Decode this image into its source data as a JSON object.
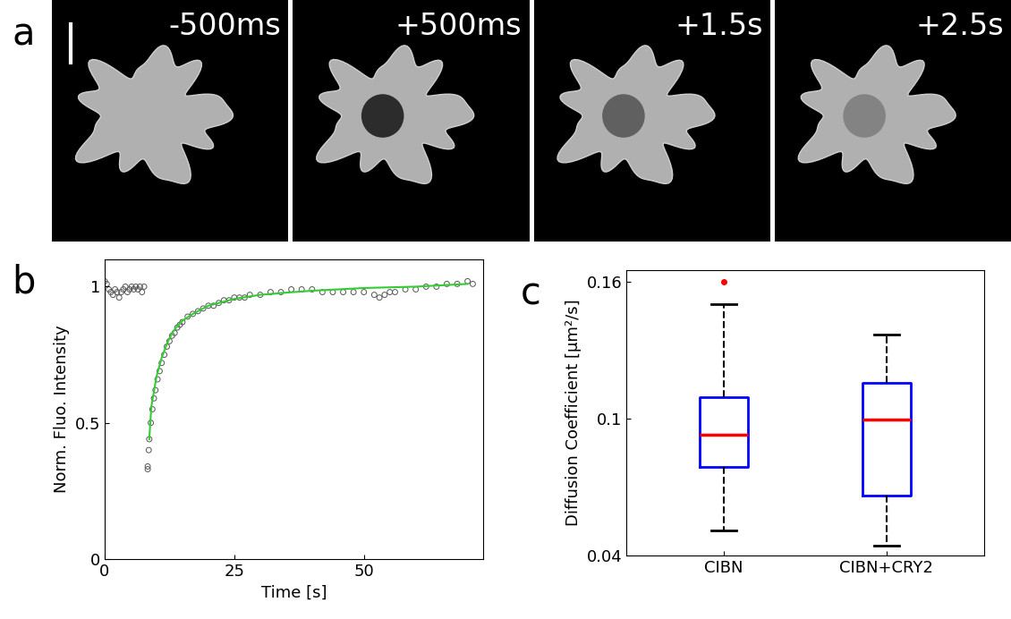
{
  "chart_data": [
    {
      "type": "image",
      "panel": "a",
      "frames": [
        "-500ms",
        "+500ms",
        "+1.5s",
        "+2.5s"
      ]
    },
    {
      "type": "scatter",
      "panel": "b",
      "x_label": "Time [s]",
      "y_label": "Norm. Fluo. Intensity",
      "xlim": [
        0,
        73
      ],
      "ylim": [
        0,
        1.1
      ],
      "xticks": [
        0,
        25,
        50
      ],
      "yticks": [
        0,
        0.5,
        1
      ],
      "series": [
        {
          "type": "scatter",
          "color": "#555555",
          "marker": "circle",
          "x": [
            0,
            0.4,
            0.8,
            1.2,
            1.6,
            2.0,
            2.4,
            2.8,
            3.2,
            3.6,
            4.0,
            4.4,
            4.8,
            5.2,
            5.6,
            6.0,
            6.4,
            6.8,
            7.2,
            7.6,
            8.3,
            8.3,
            8.5,
            8.6,
            8.9,
            9.2,
            9.5,
            9.8,
            10.2,
            10.6,
            11,
            11.5,
            12,
            12.5,
            13,
            13.5,
            14,
            14.5,
            15,
            16,
            17,
            18,
            19,
            20,
            21,
            22,
            23,
            24,
            25,
            26,
            27,
            28,
            30,
            32,
            34,
            36,
            38,
            40,
            42,
            44,
            46,
            48,
            50,
            52,
            53,
            54,
            55,
            56,
            58,
            60,
            62,
            64,
            66,
            68,
            70,
            71
          ],
          "values": [
            1.02,
            1.01,
            0.99,
            0.98,
            0.97,
            0.99,
            0.98,
            0.96,
            0.98,
            0.99,
            1.0,
            0.98,
            0.99,
            1.0,
            0.99,
            1.0,
            0.99,
            1.0,
            0.98,
            1.0,
            0.33,
            0.34,
            0.4,
            0.44,
            0.5,
            0.55,
            0.59,
            0.62,
            0.66,
            0.69,
            0.72,
            0.75,
            0.78,
            0.8,
            0.82,
            0.83,
            0.85,
            0.86,
            0.87,
            0.89,
            0.9,
            0.91,
            0.92,
            0.93,
            0.93,
            0.94,
            0.95,
            0.95,
            0.96,
            0.96,
            0.96,
            0.97,
            0.97,
            0.98,
            0.98,
            0.99,
            0.99,
            0.99,
            0.98,
            0.98,
            0.98,
            0.98,
            0.98,
            0.97,
            0.96,
            0.97,
            0.98,
            0.98,
            0.99,
            0.99,
            1.0,
            1.0,
            1.01,
            1.01,
            1.02,
            1.01
          ]
        },
        {
          "type": "line",
          "color": "#33cc33",
          "line_style": "solid",
          "x": [
            8.6,
            9,
            10,
            11,
            12,
            13,
            14,
            15,
            17,
            20,
            25,
            30,
            35,
            40,
            50,
            60,
            70
          ],
          "values": [
            0.44,
            0.56,
            0.67,
            0.74,
            0.79,
            0.83,
            0.855,
            0.875,
            0.9,
            0.93,
            0.955,
            0.97,
            0.978,
            0.985,
            0.995,
            1.0,
            1.01
          ]
        }
      ]
    },
    {
      "type": "box",
      "panel": "c",
      "y_label": "Diffusion Coefficient [µm²/s]",
      "categories": [
        "CIBN",
        "CIBN+CRY2"
      ],
      "ylim": [
        0.04,
        0.165
      ],
      "yticks": [
        0.04,
        0.1,
        0.16
      ],
      "color": "#0000ff",
      "boxes": [
        {
          "whislo": 0.051,
          "q1": 0.0786,
          "med": 0.0929,
          "q3": 0.1095,
          "whishi": 0.15,
          "fliers": [
            0.16
          ]
        },
        {
          "whislo": 0.0444,
          "q1": 0.0662,
          "med": 0.0996,
          "q3": 0.1155,
          "whishi": 0.1366,
          "fliers": []
        }
      ]
    }
  ]
}
